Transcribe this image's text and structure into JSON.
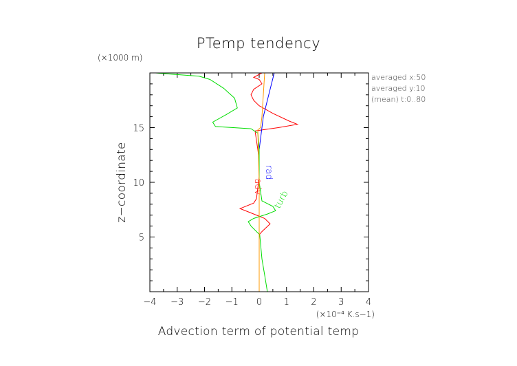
{
  "chart_data": {
    "type": "line",
    "title": "PTemp tendency",
    "xlabel": "Advection term of potential temp",
    "ylabel": "z−coordinate",
    "xunit": "(×10⁻⁴ K.s−1)",
    "yunit": "(×1000 m)",
    "xlim": [
      -4,
      4
    ],
    "ylim": [
      0,
      20
    ],
    "xticks": [
      -4,
      -3,
      -2,
      -1,
      0,
      1,
      2,
      3,
      4
    ],
    "xtick_labels": [
      "−4",
      "−3",
      "−2",
      "−1",
      "0",
      "1",
      "2",
      "3",
      "4"
    ],
    "yticks": [
      5,
      10,
      15
    ],
    "ytick_labels": [
      "5",
      "10",
      "15"
    ],
    "notes": [
      "averaged  x:50",
      "averaged  y:10",
      "(mean) t:0..80"
    ],
    "grid": false,
    "series": [
      {
        "name": "adv",
        "color": "#ff0000",
        "label_at": [
          -0.15,
          9.6
        ],
        "points": [
          [
            0,
            0
          ],
          [
            0,
            5.2
          ],
          [
            0.1,
            5.5
          ],
          [
            0.4,
            6.2
          ],
          [
            0.2,
            6.7
          ],
          [
            -0.3,
            7.2
          ],
          [
            -0.7,
            7.6
          ],
          [
            -0.2,
            8.1
          ],
          [
            -0.1,
            8.5
          ],
          [
            -0.05,
            9.5
          ],
          [
            0,
            10.5
          ],
          [
            0,
            12
          ],
          [
            -0.05,
            13
          ],
          [
            -0.15,
            14.7
          ],
          [
            0.7,
            15.0
          ],
          [
            1.4,
            15.3
          ],
          [
            1.1,
            15.6
          ],
          [
            0.5,
            16.3
          ],
          [
            0,
            17
          ],
          [
            -0.2,
            17.5
          ],
          [
            -0.3,
            18
          ],
          [
            -0.2,
            18.5
          ],
          [
            0.1,
            19
          ],
          [
            0,
            19.4
          ],
          [
            -0.2,
            19.6
          ],
          [
            0.1,
            20
          ]
        ]
      },
      {
        "name": "rad",
        "color": "#0000ff",
        "label_at": [
          0.25,
          10.9
        ],
        "points": [
          [
            0,
            0
          ],
          [
            0,
            6
          ],
          [
            0,
            10
          ],
          [
            0,
            13
          ],
          [
            0.05,
            14
          ],
          [
            0.1,
            15
          ],
          [
            0.15,
            16
          ],
          [
            0.25,
            17
          ],
          [
            0.35,
            18
          ],
          [
            0.45,
            19
          ],
          [
            0.55,
            20
          ]
        ]
      },
      {
        "name": "turb",
        "color": "#00dd00",
        "label_at": [
          0.9,
          8.3
        ],
        "points": [
          [
            0.3,
            0
          ],
          [
            0.2,
            1.5
          ],
          [
            0.1,
            3
          ],
          [
            0.02,
            5.2
          ],
          [
            -0.3,
            6
          ],
          [
            -0.4,
            6.4
          ],
          [
            -0.2,
            6.7
          ],
          [
            0.3,
            7.1
          ],
          [
            0.6,
            7.4
          ],
          [
            0.5,
            7.8
          ],
          [
            0.1,
            8.3
          ],
          [
            0,
            10
          ],
          [
            0,
            13
          ],
          [
            -0.05,
            14.5
          ],
          [
            -0.3,
            14.9
          ],
          [
            -1.6,
            15.1
          ],
          [
            -1.7,
            15.5
          ],
          [
            -1.2,
            16.2
          ],
          [
            -0.8,
            16.8
          ],
          [
            -0.9,
            17.7
          ],
          [
            -1.3,
            18.6
          ],
          [
            -1.8,
            19.4
          ],
          [
            -2.2,
            19.7
          ],
          [
            -3.8,
            20
          ]
        ]
      },
      {
        "name": "",
        "color": "#ff9900",
        "label_at": null,
        "points": [
          [
            0,
            0
          ],
          [
            0,
            10
          ],
          [
            -0.05,
            14.8
          ],
          [
            0.05,
            15
          ],
          [
            0.1,
            16
          ],
          [
            0.15,
            18
          ],
          [
            0.2,
            20
          ]
        ]
      }
    ]
  }
}
